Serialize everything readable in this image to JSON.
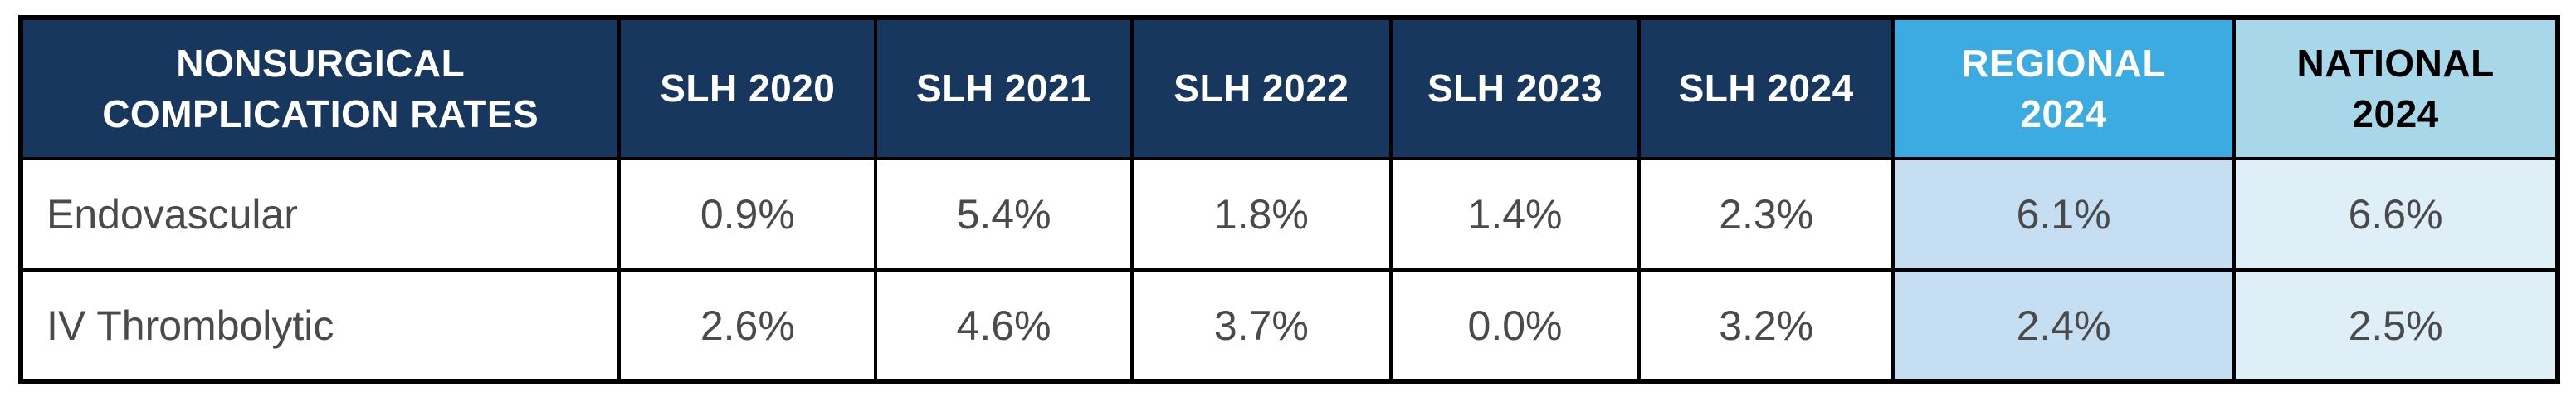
{
  "theme": {
    "page-bg": "#FFFFFF",
    "navy": "#17375E",
    "regional-blue": "#3BABE2",
    "national-blue": "#A7D7E9",
    "regional-cell": "#C5DEF2",
    "national-cell": "#DEEFF7",
    "border-black": "#000000",
    "header-text-light": "#FFFFFF",
    "header-text-dark": "#000000",
    "cell-text": "#4A4A4A"
  },
  "table": {
    "title_header": "NONSURGICAL\nCOMPLICATION RATES",
    "columns": [
      {
        "id": "slh-2020",
        "label": "SLH 2020"
      },
      {
        "id": "slh-2021",
        "label": "SLH 2021"
      },
      {
        "id": "slh-2022",
        "label": "SLH 2022"
      },
      {
        "id": "slh-2023",
        "label": "SLH 2023"
      },
      {
        "id": "slh-2024",
        "label": "SLH 2024"
      },
      {
        "id": "regional-2024",
        "label": "REGIONAL\n2024"
      },
      {
        "id": "national-2024",
        "label": "NATIONAL\n2024"
      }
    ],
    "rows": [
      {
        "label": "Endovascular",
        "values": [
          "0.9%",
          "5.4%",
          "1.8%",
          "1.4%",
          "2.3%",
          "6.1%",
          "6.6%"
        ]
      },
      {
        "label": "IV Thrombolytic",
        "values": [
          "2.6%",
          "4.6%",
          "3.7%",
          "0.0%",
          "3.2%",
          "2.4%",
          "2.5%"
        ]
      }
    ]
  },
  "chart_data": {
    "type": "table",
    "title": "NONSURGICAL COMPLICATION RATES",
    "categories": [
      "SLH 2020",
      "SLH 2021",
      "SLH 2022",
      "SLH 2023",
      "SLH 2024",
      "REGIONAL 2024",
      "NATIONAL 2024"
    ],
    "series": [
      {
        "name": "Endovascular",
        "values_pct": [
          0.9,
          5.4,
          1.8,
          1.4,
          2.3,
          6.1,
          6.6
        ]
      },
      {
        "name": "IV Thrombolytic",
        "values_pct": [
          2.6,
          4.6,
          3.7,
          0.0,
          3.2,
          2.4,
          2.5
        ]
      }
    ],
    "units": "percent",
    "notes_layout": "first column row labels; SLH yearly columns on dark navy header; REGIONAL 2024 and NATIONAL 2024 benchmark columns highlighted in blue tints"
  }
}
